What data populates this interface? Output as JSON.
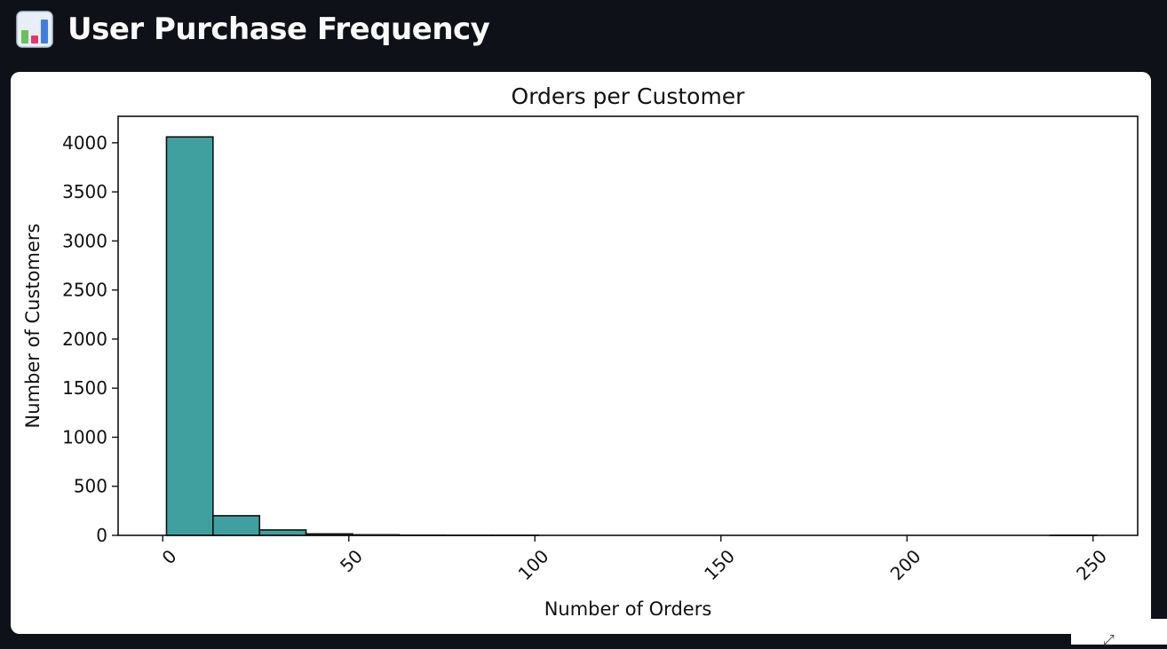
{
  "header": {
    "title": "User Purchase Frequency",
    "icon": "bar-chart-icon"
  },
  "chart_data": {
    "type": "bar",
    "subtype": "histogram",
    "title": "Orders per Customer",
    "xlabel": "Number of Orders",
    "ylabel": "Number of Customers",
    "bar_color": "#40a0a0",
    "edge_color": "#111111",
    "xlim": [
      -12,
      262
    ],
    "ylim": [
      0,
      4270
    ],
    "bin_width": 12.5,
    "bins": [
      {
        "start": 1,
        "end": 13.5,
        "count": 4060
      },
      {
        "start": 13.5,
        "end": 26,
        "count": 200
      },
      {
        "start": 26,
        "end": 38.5,
        "count": 55
      },
      {
        "start": 38.5,
        "end": 51,
        "count": 15
      },
      {
        "start": 51,
        "end": 63.5,
        "count": 6
      },
      {
        "start": 63.5,
        "end": 76,
        "count": 2
      },
      {
        "start": 76,
        "end": 88.5,
        "count": 1
      },
      {
        "start": 88.5,
        "end": 101,
        "count": 1
      },
      {
        "start": 101,
        "end": 113.5,
        "count": 0
      },
      {
        "start": 113.5,
        "end": 126,
        "count": 0
      },
      {
        "start": 126,
        "end": 138.5,
        "count": 0
      },
      {
        "start": 138.5,
        "end": 151,
        "count": 0
      },
      {
        "start": 151,
        "end": 163.5,
        "count": 0
      },
      {
        "start": 163.5,
        "end": 176,
        "count": 0
      },
      {
        "start": 176,
        "end": 188.5,
        "count": 0
      },
      {
        "start": 188.5,
        "end": 201,
        "count": 0
      },
      {
        "start": 201,
        "end": 213.5,
        "count": 0
      },
      {
        "start": 213.5,
        "end": 226,
        "count": 0
      },
      {
        "start": 226,
        "end": 238.5,
        "count": 0
      },
      {
        "start": 238.5,
        "end": 251,
        "count": 1
      }
    ],
    "xticks": [
      0,
      50,
      100,
      150,
      200,
      250
    ],
    "xtick_labels": [
      "0",
      "50",
      "100",
      "150",
      "200",
      "250"
    ],
    "xtick_rotation_deg": 45,
    "yticks": [
      0,
      500,
      1000,
      1500,
      2000,
      2500,
      3000,
      3500,
      4000
    ],
    "ytick_labels": [
      "0",
      "500",
      "1000",
      "1500",
      "2000",
      "2500",
      "3000",
      "3500",
      "4000"
    ],
    "grid": false,
    "legend": "none"
  }
}
